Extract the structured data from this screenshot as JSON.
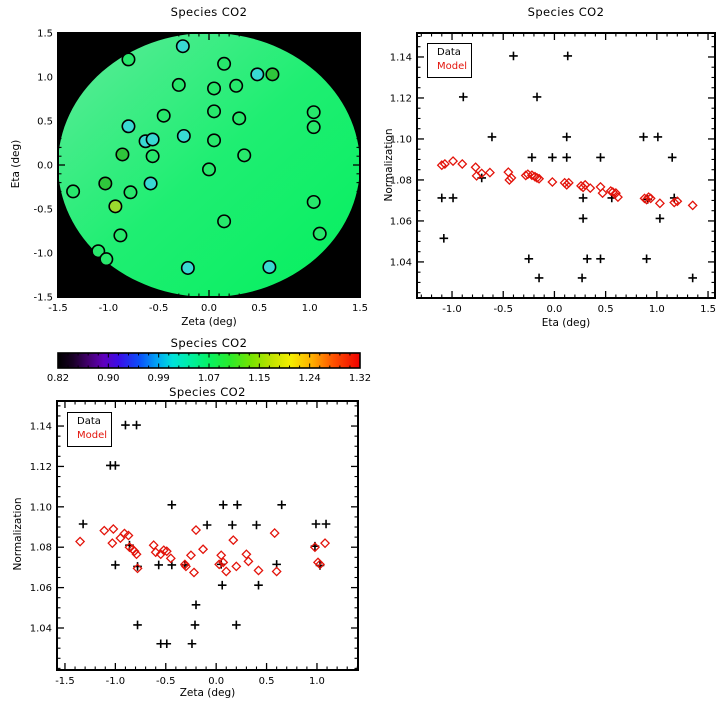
{
  "figure": {
    "background": "#ffffff"
  },
  "colors": {
    "axis": "#000000",
    "text": "#000000",
    "data_black": "#000000",
    "model_red": "#e3140b",
    "map_background": "#000000"
  },
  "chart_data": [
    {
      "id": "sky-map",
      "type": "scatter",
      "panel": "top-left",
      "title": "Species CO2",
      "xlabel": "Zeta (deg)",
      "ylabel": "Eta (deg)",
      "xlim": [
        -1.5,
        1.5
      ],
      "ylim": [
        -1.5,
        1.5
      ],
      "xtick_values": [
        -1.5,
        -1.0,
        -0.5,
        0.0,
        0.5,
        1.0,
        1.5
      ],
      "xtick_labels": [
        "-1.5",
        "-1.0",
        "-0.5",
        "0.0",
        "0.5",
        "1.0",
        "1.5"
      ],
      "xminor_step": 0.1,
      "ytick_values": [
        -1.5,
        -1.0,
        -0.5,
        0.0,
        0.5,
        1.0,
        1.5
      ],
      "ytick_labels": [
        "-1.5",
        "-1.0",
        "-0.5",
        "0.0",
        "0.5",
        "1.0",
        "1.5"
      ],
      "yminor_step": 0.1,
      "background": "#000000",
      "disk": {
        "cx": 0,
        "cy": 0,
        "rx": 1.5,
        "ry": 1.5,
        "gradient": [
          "#5feb9a",
          "#1fee72",
          "#04f05e"
        ]
      },
      "point_colors": {
        "c": "#38d9d2",
        "g": "#27e86c",
        "bg": "#2fc63c",
        "yg": "#9bd92e"
      },
      "points": [
        [
          -0.26,
          1.35,
          "c"
        ],
        [
          -0.8,
          1.2,
          "g"
        ],
        [
          0.15,
          1.15,
          "g"
        ],
        [
          0.48,
          1.03,
          "c"
        ],
        [
          0.63,
          1.03,
          "bg"
        ],
        [
          -0.3,
          0.91,
          "g"
        ],
        [
          0.05,
          0.87,
          "g"
        ],
        [
          0.27,
          0.9,
          "g"
        ],
        [
          0.05,
          0.61,
          "g"
        ],
        [
          1.04,
          0.6,
          "g"
        ],
        [
          -0.45,
          0.56,
          "g"
        ],
        [
          0.3,
          0.53,
          "g"
        ],
        [
          -0.8,
          0.44,
          "c"
        ],
        [
          1.04,
          0.43,
          "g"
        ],
        [
          -0.63,
          0.27,
          "c"
        ],
        [
          -0.56,
          0.29,
          "c"
        ],
        [
          -0.25,
          0.33,
          "c"
        ],
        [
          0.05,
          0.28,
          "g"
        ],
        [
          -0.86,
          0.12,
          "bg"
        ],
        [
          -0.56,
          0.1,
          "g"
        ],
        [
          0.35,
          0.11,
          "g"
        ],
        [
          0.0,
          -0.05,
          "g"
        ],
        [
          -1.35,
          -0.3,
          "g"
        ],
        [
          -1.03,
          -0.21,
          "bg"
        ],
        [
          -0.58,
          -0.21,
          "c"
        ],
        [
          -0.78,
          -0.31,
          "g"
        ],
        [
          -0.93,
          -0.47,
          "yg"
        ],
        [
          1.04,
          -0.42,
          "g"
        ],
        [
          0.15,
          -0.64,
          "g"
        ],
        [
          -0.88,
          -0.8,
          "g"
        ],
        [
          1.1,
          -0.78,
          "g"
        ],
        [
          -1.1,
          -0.98,
          "g"
        ],
        [
          -1.02,
          -1.07,
          "g"
        ],
        [
          -0.21,
          -1.17,
          "c"
        ],
        [
          0.6,
          -1.16,
          "c"
        ]
      ]
    },
    {
      "id": "normalization-vs-eta",
      "type": "scatter",
      "panel": "top-right",
      "title": "Species CO2",
      "xlabel": "Eta (deg)",
      "ylabel": "Normalization",
      "xlim": [
        -1.342,
        1.568
      ],
      "ylim": [
        1.0224,
        1.1517
      ],
      "xtick_values": [
        -1.0,
        -0.5,
        0.0,
        0.5,
        1.0,
        1.5
      ],
      "xtick_labels": [
        "-1.0",
        "-0.5",
        "0.0",
        "0.5",
        "1.0",
        "1.5"
      ],
      "xminor_step": 0.1,
      "ytick_values": [
        1.04,
        1.06,
        1.08,
        1.1,
        1.12,
        1.14
      ],
      "ytick_labels": [
        "1.04",
        "1.06",
        "1.08",
        "1.10",
        "1.12",
        "1.14"
      ],
      "yminor_step": 0.005,
      "legend": [
        {
          "label": "Data",
          "color": "#000000",
          "marker": "plus"
        },
        {
          "label": "Model",
          "color": "#e3140b",
          "marker": "diamond"
        }
      ],
      "series": [
        {
          "name": "Data",
          "marker": "plus",
          "color": "#000000",
          "points": [
            [
              -0.4,
              1.1405
            ],
            [
              0.13,
              1.1405
            ],
            [
              -0.89,
              1.1205
            ],
            [
              -0.17,
              1.1205
            ],
            [
              -0.61,
              1.101
            ],
            [
              0.12,
              1.101
            ],
            [
              0.87,
              1.101
            ],
            [
              1.01,
              1.101
            ],
            [
              -0.22,
              1.091
            ],
            [
              -0.02,
              1.091
            ],
            [
              0.12,
              1.091
            ],
            [
              0.45,
              1.091
            ],
            [
              1.15,
              1.091
            ],
            [
              -0.71,
              1.081
            ],
            [
              -1.1,
              1.0712
            ],
            [
              -0.99,
              1.0712
            ],
            [
              0.28,
              1.0712
            ],
            [
              0.56,
              1.0712
            ],
            [
              0.91,
              1.0705
            ],
            [
              1.17,
              1.0712
            ],
            [
              0.28,
              1.0612
            ],
            [
              1.03,
              1.0612
            ],
            [
              -1.08,
              1.0515
            ],
            [
              -0.25,
              1.0415
            ],
            [
              0.32,
              1.0415
            ],
            [
              0.45,
              1.0415
            ],
            [
              0.9,
              1.0415
            ],
            [
              -0.15,
              1.0322
            ],
            [
              0.27,
              1.0322
            ],
            [
              1.35,
              1.0322
            ]
          ]
        },
        {
          "name": "Model",
          "marker": "diamond",
          "color": "#e3140b",
          "points": [
            [
              -1.1,
              1.0872
            ],
            [
              -1.07,
              1.0878
            ],
            [
              -0.99,
              1.0892
            ],
            [
              -0.9,
              1.0878
            ],
            [
              -0.77,
              1.0862
            ],
            [
              -0.76,
              1.082
            ],
            [
              -0.71,
              1.0832
            ],
            [
              -0.63,
              1.0836
            ],
            [
              -0.45,
              1.0838
            ],
            [
              -0.44,
              1.08
            ],
            [
              -0.42,
              1.081
            ],
            [
              -0.28,
              1.0822
            ],
            [
              -0.26,
              1.0828
            ],
            [
              -0.22,
              1.0823
            ],
            [
              -0.19,
              1.0816
            ],
            [
              -0.17,
              1.081
            ],
            [
              -0.15,
              1.0806
            ],
            [
              -0.02,
              1.079
            ],
            [
              0.1,
              1.0786
            ],
            [
              0.12,
              1.0776
            ],
            [
              0.14,
              1.0786
            ],
            [
              0.26,
              1.0771
            ],
            [
              0.28,
              1.0764
            ],
            [
              0.3,
              1.0776
            ],
            [
              0.35,
              1.076
            ],
            [
              0.45,
              1.0766
            ],
            [
              0.47,
              1.0736
            ],
            [
              0.55,
              1.0746
            ],
            [
              0.57,
              1.0741
            ],
            [
              0.6,
              1.0736
            ],
            [
              0.62,
              1.0716
            ],
            [
              0.88,
              1.071
            ],
            [
              0.9,
              1.0704
            ],
            [
              0.92,
              1.0716
            ],
            [
              0.94,
              1.071
            ],
            [
              1.03,
              1.0686
            ],
            [
              1.17,
              1.069
            ],
            [
              1.2,
              1.0696
            ],
            [
              1.35,
              1.0676
            ]
          ]
        }
      ]
    },
    {
      "id": "colorbar",
      "type": "colorbar",
      "panel": "middle-left",
      "title": "Species CO2",
      "tick_labels": [
        "0.82",
        "0.90",
        "0.99",
        "1.07",
        "1.15",
        "1.24",
        "1.32"
      ],
      "gradient_stops": [
        [
          0.0,
          "#000000"
        ],
        [
          0.05,
          "#190026"
        ],
        [
          0.1,
          "#43006e"
        ],
        [
          0.15,
          "#6000bb"
        ],
        [
          0.2,
          "#3b0ce8"
        ],
        [
          0.27,
          "#0b50fa"
        ],
        [
          0.33,
          "#00a8f5"
        ],
        [
          0.38,
          "#00e2da"
        ],
        [
          0.44,
          "#00efa0"
        ],
        [
          0.5,
          "#06f263"
        ],
        [
          0.57,
          "#2bea2b"
        ],
        [
          0.64,
          "#77e400"
        ],
        [
          0.71,
          "#c3e300"
        ],
        [
          0.77,
          "#f5ef00"
        ],
        [
          0.84,
          "#ffb000"
        ],
        [
          0.91,
          "#ff5400"
        ],
        [
          1.0,
          "#ef0000"
        ]
      ]
    },
    {
      "id": "normalization-vs-zeta",
      "type": "scatter",
      "panel": "bottom-left",
      "title": "Species CO2",
      "xlabel": "Zeta (deg)",
      "ylabel": "Normalization",
      "xlim": [
        -1.579,
        1.407
      ],
      "ylim": [
        1.0192,
        1.1524
      ],
      "xtick_values": [
        -1.5,
        -1.0,
        -0.5,
        0.0,
        0.5,
        1.0
      ],
      "xtick_labels": [
        "-1.5",
        "-1.0",
        "-0.5",
        "0.0",
        "0.5",
        "1.0"
      ],
      "xminor_step": 0.1,
      "ytick_values": [
        1.04,
        1.06,
        1.08,
        1.1,
        1.12,
        1.14
      ],
      "ytick_labels": [
        "1.04",
        "1.06",
        "1.08",
        "1.10",
        "1.12",
        "1.14"
      ],
      "yminor_step": 0.005,
      "legend": [
        {
          "label": "Data",
          "color": "#000000",
          "marker": "plus"
        },
        {
          "label": "Model",
          "color": "#e3140b",
          "marker": "diamond"
        }
      ],
      "series": [
        {
          "name": "Data",
          "marker": "plus",
          "color": "#000000",
          "points": [
            [
              -0.9,
              1.1405
            ],
            [
              -0.79,
              1.1405
            ],
            [
              -1.05,
              1.1205
            ],
            [
              -1.0,
              1.1205
            ],
            [
              -0.44,
              1.101
            ],
            [
              0.07,
              1.101
            ],
            [
              0.21,
              1.101
            ],
            [
              0.65,
              1.101
            ],
            [
              -1.32,
              1.0915
            ],
            [
              -0.09,
              1.091
            ],
            [
              0.16,
              1.091
            ],
            [
              0.4,
              1.091
            ],
            [
              0.99,
              1.0915
            ],
            [
              1.09,
              1.0915
            ],
            [
              -0.86,
              1.081
            ],
            [
              0.98,
              1.0805
            ],
            [
              -1.0,
              1.0712
            ],
            [
              -0.78,
              1.0705
            ],
            [
              -0.57,
              1.0712
            ],
            [
              -0.44,
              1.0712
            ],
            [
              -0.31,
              1.0712
            ],
            [
              0.05,
              1.0715
            ],
            [
              0.6,
              1.0715
            ],
            [
              1.03,
              1.071
            ],
            [
              0.06,
              1.0612
            ],
            [
              0.42,
              1.0612
            ],
            [
              -0.2,
              1.0515
            ],
            [
              -0.78,
              1.0415
            ],
            [
              -0.21,
              1.0415
            ],
            [
              0.2,
              1.0415
            ],
            [
              -0.55,
              1.0322
            ],
            [
              -0.49,
              1.0322
            ],
            [
              -0.24,
              1.0322
            ]
          ]
        },
        {
          "name": "Model",
          "marker": "diamond",
          "color": "#e3140b",
          "points": [
            [
              -1.35,
              1.0828
            ],
            [
              -1.11,
              1.0882
            ],
            [
              -1.02,
              1.089
            ],
            [
              -1.03,
              1.082
            ],
            [
              -0.95,
              1.0845
            ],
            [
              -0.91,
              1.0868
            ],
            [
              -0.87,
              1.0858
            ],
            [
              -0.86,
              1.08
            ],
            [
              -0.83,
              1.079
            ],
            [
              -0.81,
              1.078
            ],
            [
              -0.79,
              1.0765
            ],
            [
              -0.78,
              1.0695
            ],
            [
              -0.62,
              1.081
            ],
            [
              -0.6,
              1.0775
            ],
            [
              -0.55,
              1.0765
            ],
            [
              -0.52,
              1.0785
            ],
            [
              -0.49,
              1.078
            ],
            [
              -0.45,
              1.0745
            ],
            [
              -0.31,
              1.0715
            ],
            [
              -0.3,
              1.0705
            ],
            [
              -0.25,
              1.076
            ],
            [
              -0.22,
              1.0675
            ],
            [
              -0.2,
              1.0885
            ],
            [
              -0.13,
              1.079
            ],
            [
              0.03,
              1.0715
            ],
            [
              0.05,
              1.076
            ],
            [
              0.07,
              1.0725
            ],
            [
              0.1,
              1.068
            ],
            [
              0.17,
              1.0835
            ],
            [
              0.2,
              1.0705
            ],
            [
              0.3,
              1.0765
            ],
            [
              0.32,
              1.073
            ],
            [
              0.42,
              1.0685
            ],
            [
              0.58,
              1.087
            ],
            [
              0.6,
              1.068
            ],
            [
              0.98,
              1.08
            ],
            [
              1.08,
              1.082
            ],
            [
              1.01,
              1.0725
            ],
            [
              1.03,
              1.0715
            ]
          ]
        }
      ]
    }
  ]
}
